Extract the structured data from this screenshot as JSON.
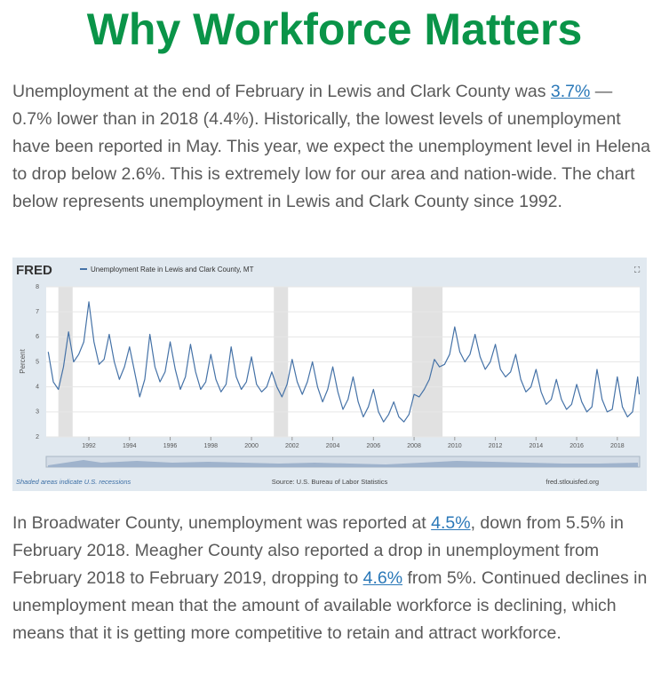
{
  "title": "Why Workforce Matters",
  "paragraphs": [
    [
      {
        "text": "Unemployment at the end of February in Lewis and Clark County was "
      },
      {
        "text": "3.7%",
        "link": true
      },
      {
        "text": " — 0.7% lower than in 2018 (4.4%). Historically, the lowest levels of unemployment have been reported in May. This year, we expect the unemployment level in Helena to drop below 2.6%. This is extremely low for our area and nation-wide. The chart below represents unemployment in Lewis and Clark County since 1992."
      }
    ],
    [
      {
        "text": "In Broadwater County, unemployment was reported at "
      },
      {
        "text": "4.5%",
        "link": true
      },
      {
        "text": ", down from 5.5% in February 2018. Meagher County also reported a drop in unemployment from February 2018 to February 2019, dropping to "
      },
      {
        "text": "4.6%",
        "link": true
      },
      {
        "text": " from 5%. Continued declines in unemployment mean that the amount of available workforce is declining, which means that it is getting more competitive to retain and attract workforce."
      }
    ]
  ],
  "chart_data": {
    "type": "line",
    "logo": "FRED",
    "y_label": "Percent",
    "recession_note": "Shaded areas indicate U.S. recessions",
    "source": "Source: U.S. Bureau of Labor Statistics",
    "site": "fred.stlouisfed.org",
    "grid": true,
    "xlim": [
      1989.9,
      2019.1
    ],
    "ylim": [
      2,
      8
    ],
    "xticks": [
      1992,
      1994,
      1996,
      1998,
      2000,
      2002,
      2004,
      2006,
      2008,
      2010,
      2012,
      2014,
      2016,
      2018
    ],
    "yticks": [
      2,
      3,
      4,
      5,
      6,
      7,
      8
    ],
    "recessions": [
      [
        1990.5,
        1991.2
      ],
      [
        2001.1,
        2001.8
      ],
      [
        2007.9,
        2009.4
      ]
    ],
    "recession_color": "#e1e1e1",
    "x": [
      1990.0,
      1990.25,
      1990.5,
      1990.75,
      1991.0,
      1991.25,
      1991.5,
      1991.75,
      1992.0,
      1992.25,
      1992.5,
      1992.75,
      1993.0,
      1993.25,
      1993.5,
      1993.75,
      1994.0,
      1994.25,
      1994.5,
      1994.75,
      1995.0,
      1995.25,
      1995.5,
      1995.75,
      1996.0,
      1996.25,
      1996.5,
      1996.75,
      1997.0,
      1997.25,
      1997.5,
      1997.75,
      1998.0,
      1998.25,
      1998.5,
      1998.75,
      1999.0,
      1999.25,
      1999.5,
      1999.75,
      2000.0,
      2000.25,
      2000.5,
      2000.75,
      2001.0,
      2001.25,
      2001.5,
      2001.75,
      2002.0,
      2002.25,
      2002.5,
      2002.75,
      2003.0,
      2003.25,
      2003.5,
      2003.75,
      2004.0,
      2004.25,
      2004.5,
      2004.75,
      2005.0,
      2005.25,
      2005.5,
      2005.75,
      2006.0,
      2006.25,
      2006.5,
      2006.75,
      2007.0,
      2007.25,
      2007.5,
      2007.75,
      2008.0,
      2008.25,
      2008.5,
      2008.75,
      2009.0,
      2009.25,
      2009.5,
      2009.75,
      2010.0,
      2010.25,
      2010.5,
      2010.75,
      2011.0,
      2011.25,
      2011.5,
      2011.75,
      2012.0,
      2012.25,
      2012.5,
      2012.75,
      2013.0,
      2013.25,
      2013.5,
      2013.75,
      2014.0,
      2014.25,
      2014.5,
      2014.75,
      2015.0,
      2015.25,
      2015.5,
      2015.75,
      2016.0,
      2016.25,
      2016.5,
      2016.75,
      2017.0,
      2017.25,
      2017.5,
      2017.75,
      2018.0,
      2018.25,
      2018.5,
      2018.75,
      2019.0,
      2019.08
    ],
    "series": [
      {
        "name": "Unemployment Rate in Lewis and Clark County, MT",
        "color": "#4572a7",
        "values": [
          5.4,
          4.2,
          3.9,
          4.8,
          6.2,
          5.0,
          5.3,
          5.8,
          7.4,
          5.8,
          4.9,
          5.1,
          6.1,
          5.0,
          4.3,
          4.8,
          5.6,
          4.6,
          3.6,
          4.3,
          6.1,
          4.8,
          4.2,
          4.6,
          5.8,
          4.7,
          3.9,
          4.4,
          5.7,
          4.6,
          3.9,
          4.2,
          5.3,
          4.3,
          3.8,
          4.1,
          5.6,
          4.4,
          3.9,
          4.2,
          5.2,
          4.1,
          3.8,
          4.0,
          4.6,
          4.0,
          3.6,
          4.1,
          5.1,
          4.2,
          3.7,
          4.2,
          5.0,
          4.0,
          3.4,
          3.9,
          4.8,
          3.8,
          3.1,
          3.5,
          4.4,
          3.4,
          2.8,
          3.2,
          3.9,
          3.0,
          2.6,
          2.9,
          3.4,
          2.8,
          2.6,
          2.9,
          3.7,
          3.6,
          3.9,
          4.3,
          5.1,
          4.8,
          4.9,
          5.3,
          6.4,
          5.4,
          5.0,
          5.3,
          6.1,
          5.2,
          4.7,
          5.0,
          5.7,
          4.7,
          4.4,
          4.6,
          5.3,
          4.3,
          3.8,
          4.0,
          4.7,
          3.8,
          3.3,
          3.5,
          4.3,
          3.5,
          3.1,
          3.3,
          4.1,
          3.4,
          3.0,
          3.2,
          4.7,
          3.5,
          3.0,
          3.1,
          4.4,
          3.2,
          2.8,
          3.0,
          4.4,
          3.7
        ]
      }
    ]
  }
}
